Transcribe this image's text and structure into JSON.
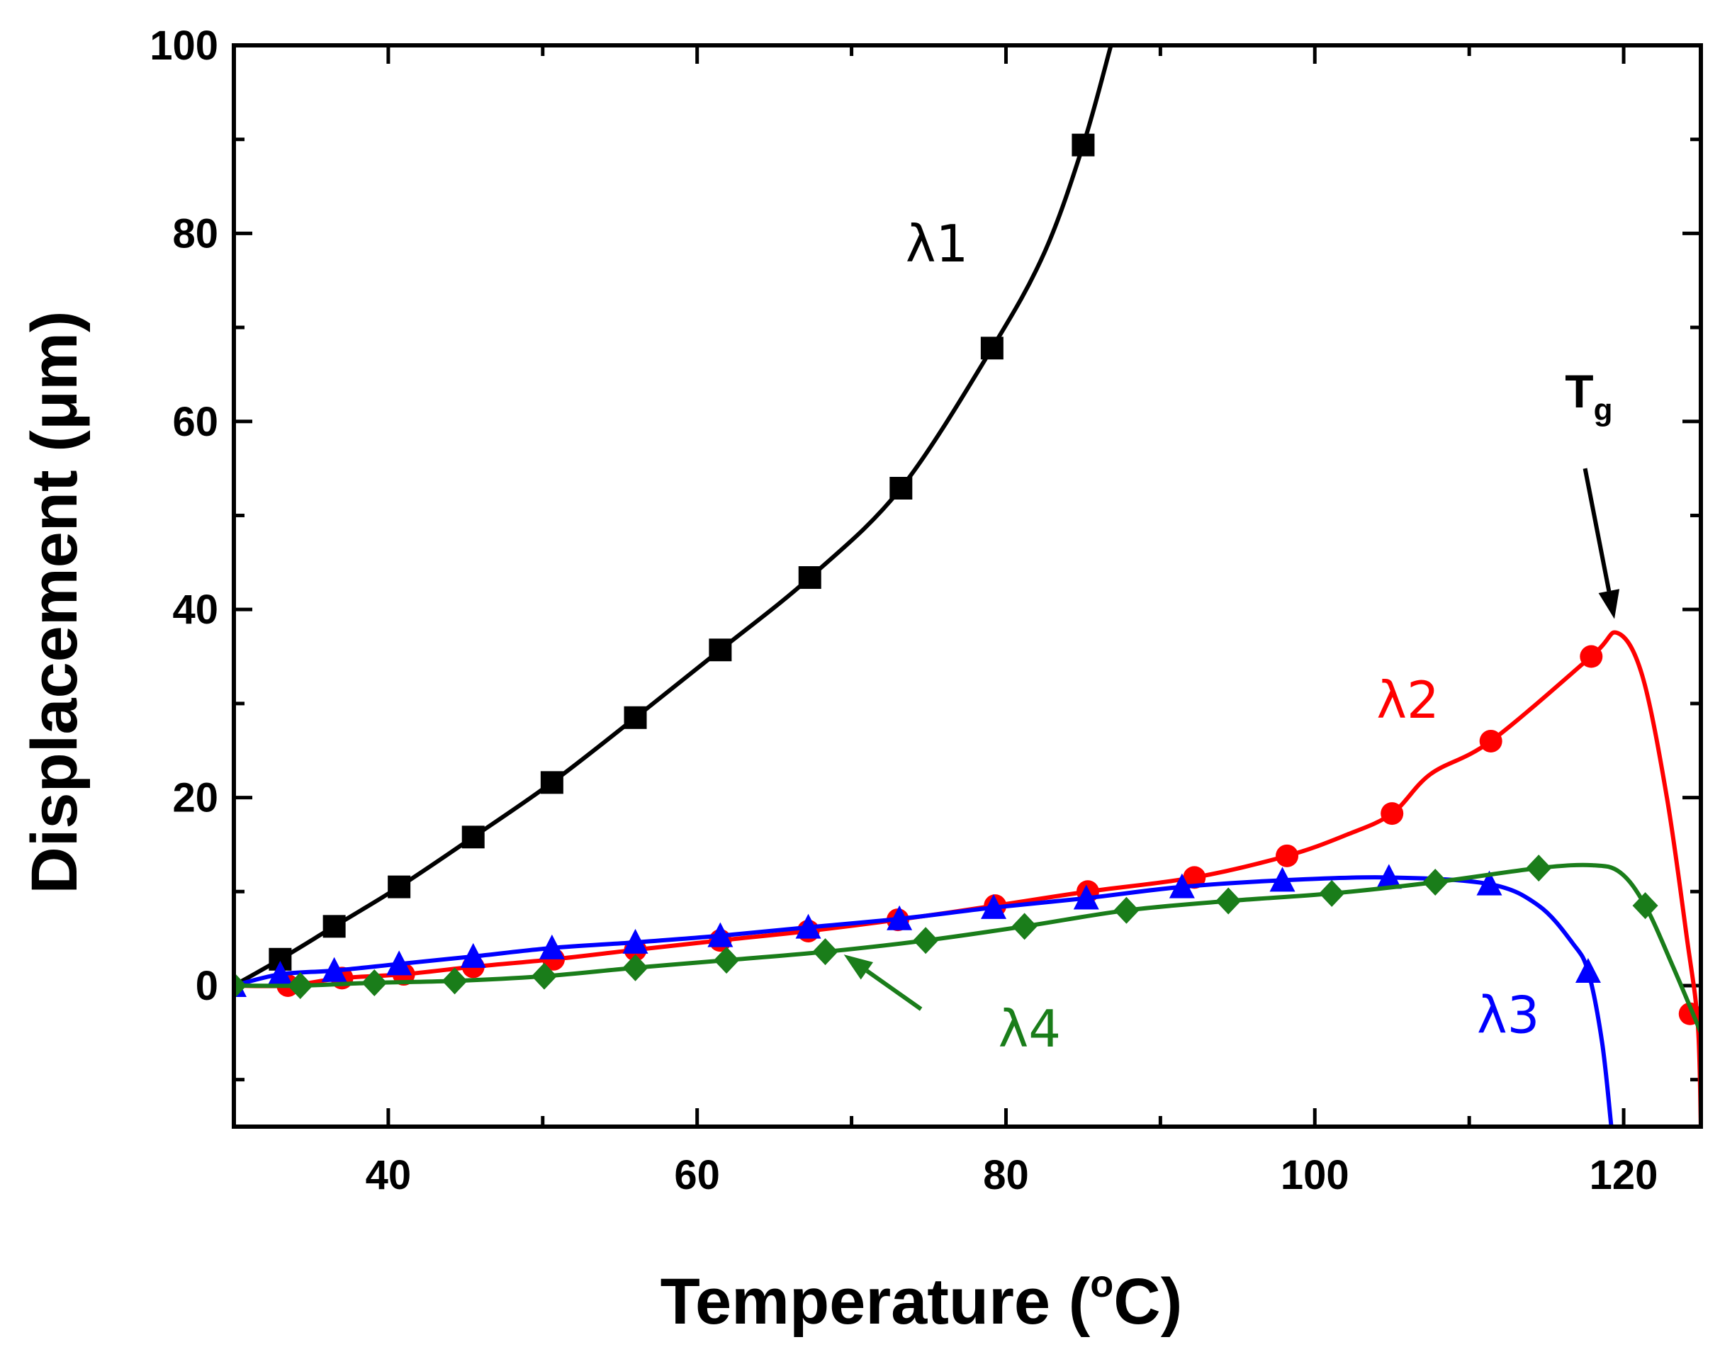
{
  "chart_data": {
    "type": "line",
    "title": "",
    "xlabel": "Temperature (°C)",
    "ylabel": "Displacement (μm)",
    "xlabel_parts": {
      "main": "Temperature (",
      "superscript": "o",
      "unit": "C)"
    },
    "ylabel_parts": {
      "main": "Displacement (",
      "unit": "μm)"
    },
    "xlim": [
      30,
      125
    ],
    "ylim": [
      -15,
      100
    ],
    "xticks": [
      40,
      60,
      80,
      100,
      120
    ],
    "xtick_labels": [
      "40",
      "60",
      "80",
      "100",
      "120"
    ],
    "yticks": [
      0,
      20,
      40,
      60,
      80,
      100
    ],
    "ytick_labels": [
      "0",
      "20",
      "40",
      "60",
      "80",
      "100"
    ],
    "series": [
      {
        "name": "λ1",
        "color": "#000000",
        "marker": "square",
        "x": [
          30,
          33,
          36.5,
          40.7,
          45.5,
          50.6,
          56,
          61.5,
          67.3,
          73.2,
          79.1,
          82.5,
          85,
          86.8
        ],
        "y": [
          0,
          2.8,
          6.3,
          10.5,
          15.8,
          21.6,
          28.5,
          35.7,
          43.4,
          52.9,
          67.8,
          78,
          89.4,
          100
        ],
        "marker_x": [
          33,
          36.5,
          40.7,
          45.5,
          50.6,
          56,
          61.5,
          67.3,
          73.2,
          79.1,
          85
        ],
        "marker_y": [
          2.8,
          6.3,
          10.5,
          15.8,
          21.6,
          28.5,
          35.7,
          43.4,
          52.9,
          67.8,
          89.4
        ]
      },
      {
        "name": "λ2",
        "color": "#ff0000",
        "marker": "circle",
        "x": [
          30,
          33.5,
          37,
          41,
          45.5,
          50.7,
          56,
          61.5,
          67.2,
          73,
          79.3,
          85.3,
          92.2,
          98.2,
          102,
          105,
          107.5,
          111.4,
          117.9,
          119.6,
          121.2,
          122.8,
          124.1,
          124.8,
          125
        ],
        "y": [
          0,
          0,
          0.8,
          1.2,
          2,
          2.8,
          3.8,
          4.8,
          5.8,
          7,
          8.5,
          10,
          11.5,
          13.8,
          16,
          18.3,
          22.5,
          26,
          35,
          37.5,
          33,
          20,
          5,
          -4,
          -15
        ],
        "marker_x": [
          33.5,
          37,
          41,
          45.5,
          50.7,
          56,
          61.5,
          67.2,
          73,
          79.3,
          85.3,
          92.2,
          98.2,
          105,
          111.4,
          117.9,
          124.3
        ],
        "marker_y": [
          0,
          0.8,
          1.2,
          2,
          2.8,
          3.8,
          4.8,
          5.8,
          7,
          8.5,
          10,
          11.5,
          13.8,
          18.3,
          26,
          35,
          -3
        ]
      },
      {
        "name": "λ3",
        "color": "#0000ff",
        "marker": "triangle",
        "x": [
          30,
          33,
          36.5,
          40.7,
          45.5,
          50.6,
          56,
          61.5,
          67.2,
          73.1,
          79.2,
          85.2,
          91.4,
          97.9,
          104.8,
          111.3,
          114.5,
          116.7,
          117.7,
          118.6,
          119.2
        ],
        "y": [
          0,
          1.2,
          1.6,
          2.3,
          3.1,
          4,
          4.6,
          5.3,
          6.2,
          7.1,
          8.3,
          9.3,
          10.5,
          11.2,
          11.5,
          10.8,
          8.5,
          4.5,
          1.5,
          -6,
          -15
        ],
        "marker_x": [
          30,
          33,
          36.5,
          40.7,
          45.5,
          50.6,
          56,
          61.5,
          67.2,
          73.1,
          79.2,
          85.2,
          91.4,
          97.9,
          104.8,
          111.3,
          117.7
        ],
        "marker_y": [
          0,
          1.2,
          1.6,
          2.3,
          3.1,
          4,
          4.6,
          5.3,
          6.2,
          7.1,
          8.3,
          9.3,
          10.5,
          11.2,
          11.5,
          10.8,
          1.5
        ]
      },
      {
        "name": "λ4",
        "color": "#1a7d1a",
        "marker": "diamond",
        "x": [
          30,
          34.3,
          39.1,
          44.3,
          50.1,
          56,
          61.9,
          68.3,
          74.8,
          81.2,
          87.8,
          94.4,
          101.1,
          107.8,
          114.5,
          118,
          119.8,
          121.4,
          123.2,
          125
        ],
        "y": [
          0,
          0,
          0.3,
          0.5,
          1,
          1.9,
          2.7,
          3.6,
          4.8,
          6.3,
          8,
          9,
          9.8,
          11,
          12.5,
          12.8,
          12,
          8.5,
          2,
          -5
        ],
        "marker_x": [
          30,
          34.3,
          39.1,
          44.3,
          50.1,
          56,
          61.9,
          68.3,
          74.8,
          81.2,
          87.8,
          94.4,
          101.1,
          107.8,
          114.5,
          121.4
        ],
        "marker_y": [
          0,
          0,
          0.3,
          0.5,
          1,
          1.9,
          2.7,
          3.6,
          4.8,
          6.3,
          8,
          9,
          9.8,
          11,
          12.5,
          8.5
        ]
      }
    ],
    "annotations": [
      {
        "id": "l1",
        "text": "λ1",
        "base": "λ",
        "sub": "1",
        "color": "#000000",
        "x": 73.5,
        "y": 77
      },
      {
        "id": "l2",
        "text": "λ2",
        "base": "λ",
        "sub": "2",
        "color": "#ff0000",
        "x": 104,
        "y": 28.5
      },
      {
        "id": "l3",
        "text": "λ3",
        "base": "λ",
        "sub": "3",
        "color": "#0000ff",
        "x": 110.5,
        "y": -5
      },
      {
        "id": "l4",
        "text": "λ4",
        "base": "λ",
        "sub": "4",
        "color": "#1a7d1a",
        "x": 79.5,
        "y": -6.5
      },
      {
        "id": "tg",
        "text": "Tg",
        "base": "T",
        "sub": "g",
        "color": "#000000",
        "x": 116.2,
        "y": 61.5
      }
    ],
    "arrows": [
      {
        "id": "tg-arrow",
        "color": "#000000",
        "from": [
          117.5,
          55
        ],
        "to": [
          119.4,
          39
        ]
      },
      {
        "id": "l4-arrow",
        "color": "#1a7d1a",
        "from": [
          74.5,
          -2.5
        ],
        "to": [
          69.5,
          3.3
        ]
      }
    ]
  }
}
